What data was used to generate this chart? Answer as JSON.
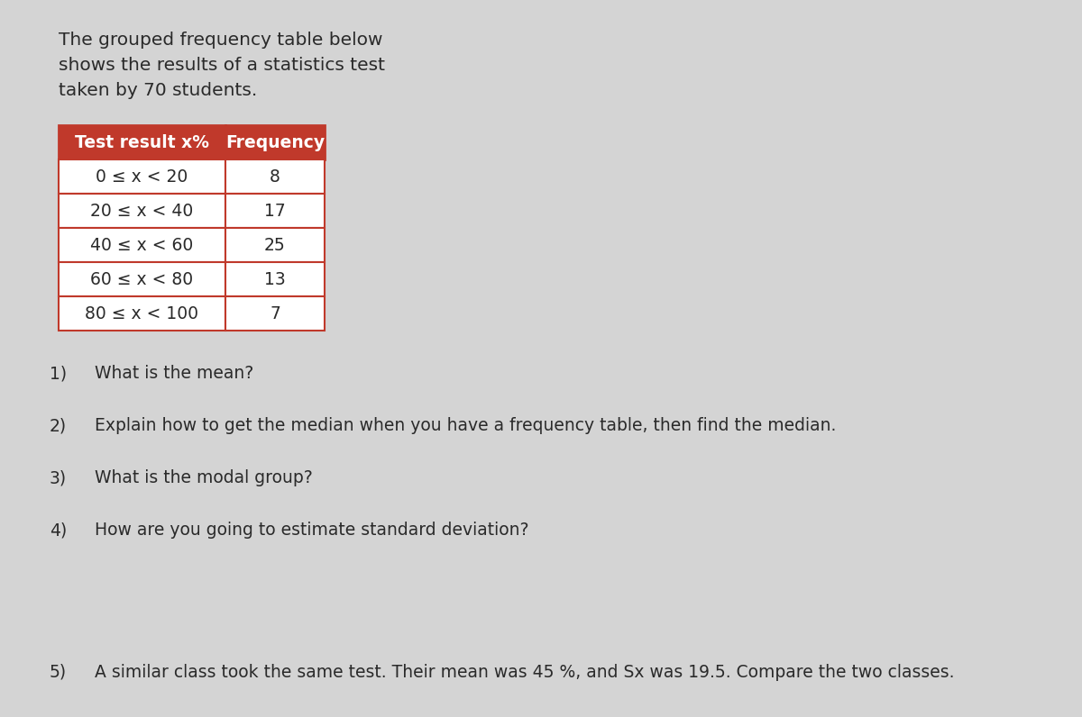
{
  "intro_lines": [
    "The grouped frequency table below",
    "shows the results of a statistics test",
    "taken by 70 students."
  ],
  "table_header": [
    "Test result x%",
    "Frequency"
  ],
  "table_rows": [
    [
      "0 ≤ x < 20",
      "8"
    ],
    [
      "20 ≤ x < 40",
      "17"
    ],
    [
      "40 ≤ x < 60",
      "25"
    ],
    [
      "60 ≤ x < 80",
      "13"
    ],
    [
      "80 ≤ x < 100",
      "7"
    ]
  ],
  "header_bg": "#c0392b",
  "header_text_color": "#ffffff",
  "row_bg": "#ffffff",
  "border_color": "#c0392b",
  "questions": [
    "What is the mean?",
    "Explain how to get the median when you have a frequency table, then find the median.",
    "What is the modal group?",
    "How are you going to estimate standard deviation?"
  ],
  "question5": "A similar class took the same test. Their mean was 45 %, and Sx was 19.5. Compare the two classes.",
  "bg_color": "#d4d4d4",
  "text_color": "#2a2a2a",
  "question_fontsize": 13.5,
  "intro_fontsize": 14.5,
  "table_fontsize": 13.5
}
